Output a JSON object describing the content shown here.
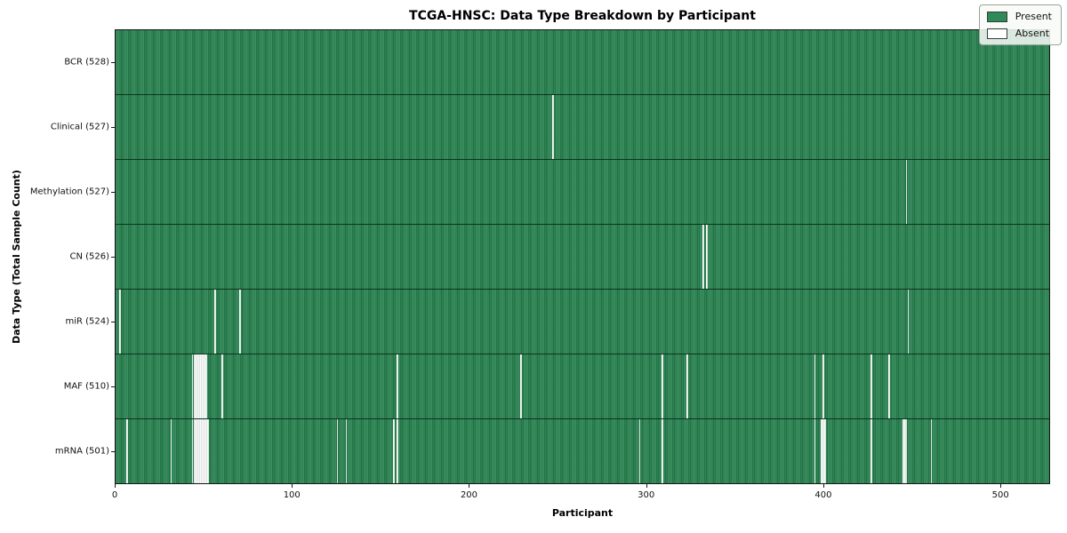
{
  "figure": {
    "title": "TCGA-HNSC: Data Type Breakdown by Participant",
    "xlabel": "Participant",
    "ylabel": "Data Type (Total Sample Count)"
  },
  "legend": {
    "items": [
      {
        "label": "Present",
        "color": "#2e8b57"
      },
      {
        "label": "Absent",
        "color": "#ffffff"
      }
    ]
  },
  "chart_data": {
    "type": "heatmap",
    "title": "TCGA-HNSC: Data Type Breakdown by Participant",
    "xlabel": "Participant",
    "ylabel": "Data Type (Total Sample Count)",
    "x_ticks": [
      0,
      100,
      200,
      300,
      400,
      500
    ],
    "x_range": [
      0,
      528
    ],
    "n_participants": 528,
    "grid": false,
    "legend_position": "upper right",
    "colors": {
      "present": "#2e8b57",
      "absent": "#fbfbfb"
    },
    "rows": [
      {
        "label": "BCR (528)",
        "data_type": "BCR",
        "present_count": 528,
        "absent_participants": []
      },
      {
        "label": "Clinical (527)",
        "data_type": "Clinical",
        "present_count": 527,
        "absent_participants": [
          247
        ]
      },
      {
        "label": "Methylation (527)",
        "data_type": "Methylation",
        "present_count": 527,
        "absent_participants": [
          447
        ]
      },
      {
        "label": "CN (526)",
        "data_type": "CN",
        "present_count": 526,
        "absent_participants": [
          332,
          334
        ]
      },
      {
        "label": "miR (524)",
        "data_type": "miR",
        "present_count": 524,
        "absent_participants": [
          2,
          56,
          70,
          448
        ]
      },
      {
        "label": "MAF (510)",
        "data_type": "MAF",
        "present_count": 510,
        "absent_participants": [
          43,
          44,
          45,
          46,
          47,
          48,
          49,
          50,
          51,
          60,
          159,
          229,
          309,
          323,
          395,
          400,
          427,
          437
        ]
      },
      {
        "label": "mRNA (501)",
        "data_type": "mRNA",
        "present_count": 501,
        "absent_participants": [
          6,
          31,
          43,
          44,
          45,
          46,
          47,
          48,
          49,
          50,
          51,
          52,
          125,
          130,
          157,
          159,
          296,
          309,
          395,
          399,
          400,
          401,
          427,
          445,
          446,
          447,
          461
        ]
      }
    ]
  }
}
